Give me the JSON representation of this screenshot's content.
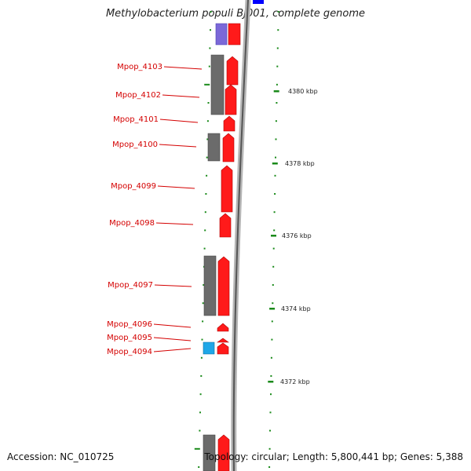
{
  "header": {
    "title": "Methylobacterium populi BJ001, complete genome"
  },
  "footer": {
    "accession": "Accession: NC_010725",
    "topology": "Topology: circular; Length: 5,800,441 bp; Genes: 5,388"
  },
  "colors": {
    "forward_gene": "#ff1a1a",
    "reverse_gene": "#6b6b6b",
    "lavender_gene": "#7b68d8",
    "blue_gene": "#0000ff",
    "cyan_gene": "#1fa7e8",
    "tick": "#1a8a1a",
    "label": "#d40000"
  },
  "scale_labels": [
    "4380 kbp",
    "4378 kbp",
    "4376 kbp",
    "4374 kbp",
    "4372 kbp"
  ],
  "gene_labels": [
    "Mpop_4103",
    "Mpop_4102",
    "Mpop_4101",
    "Mpop_4100",
    "Mpop_4099",
    "Mpop_4098",
    "Mpop_4097",
    "Mpop_4096",
    "Mpop_4095",
    "Mpop_4094"
  ]
}
